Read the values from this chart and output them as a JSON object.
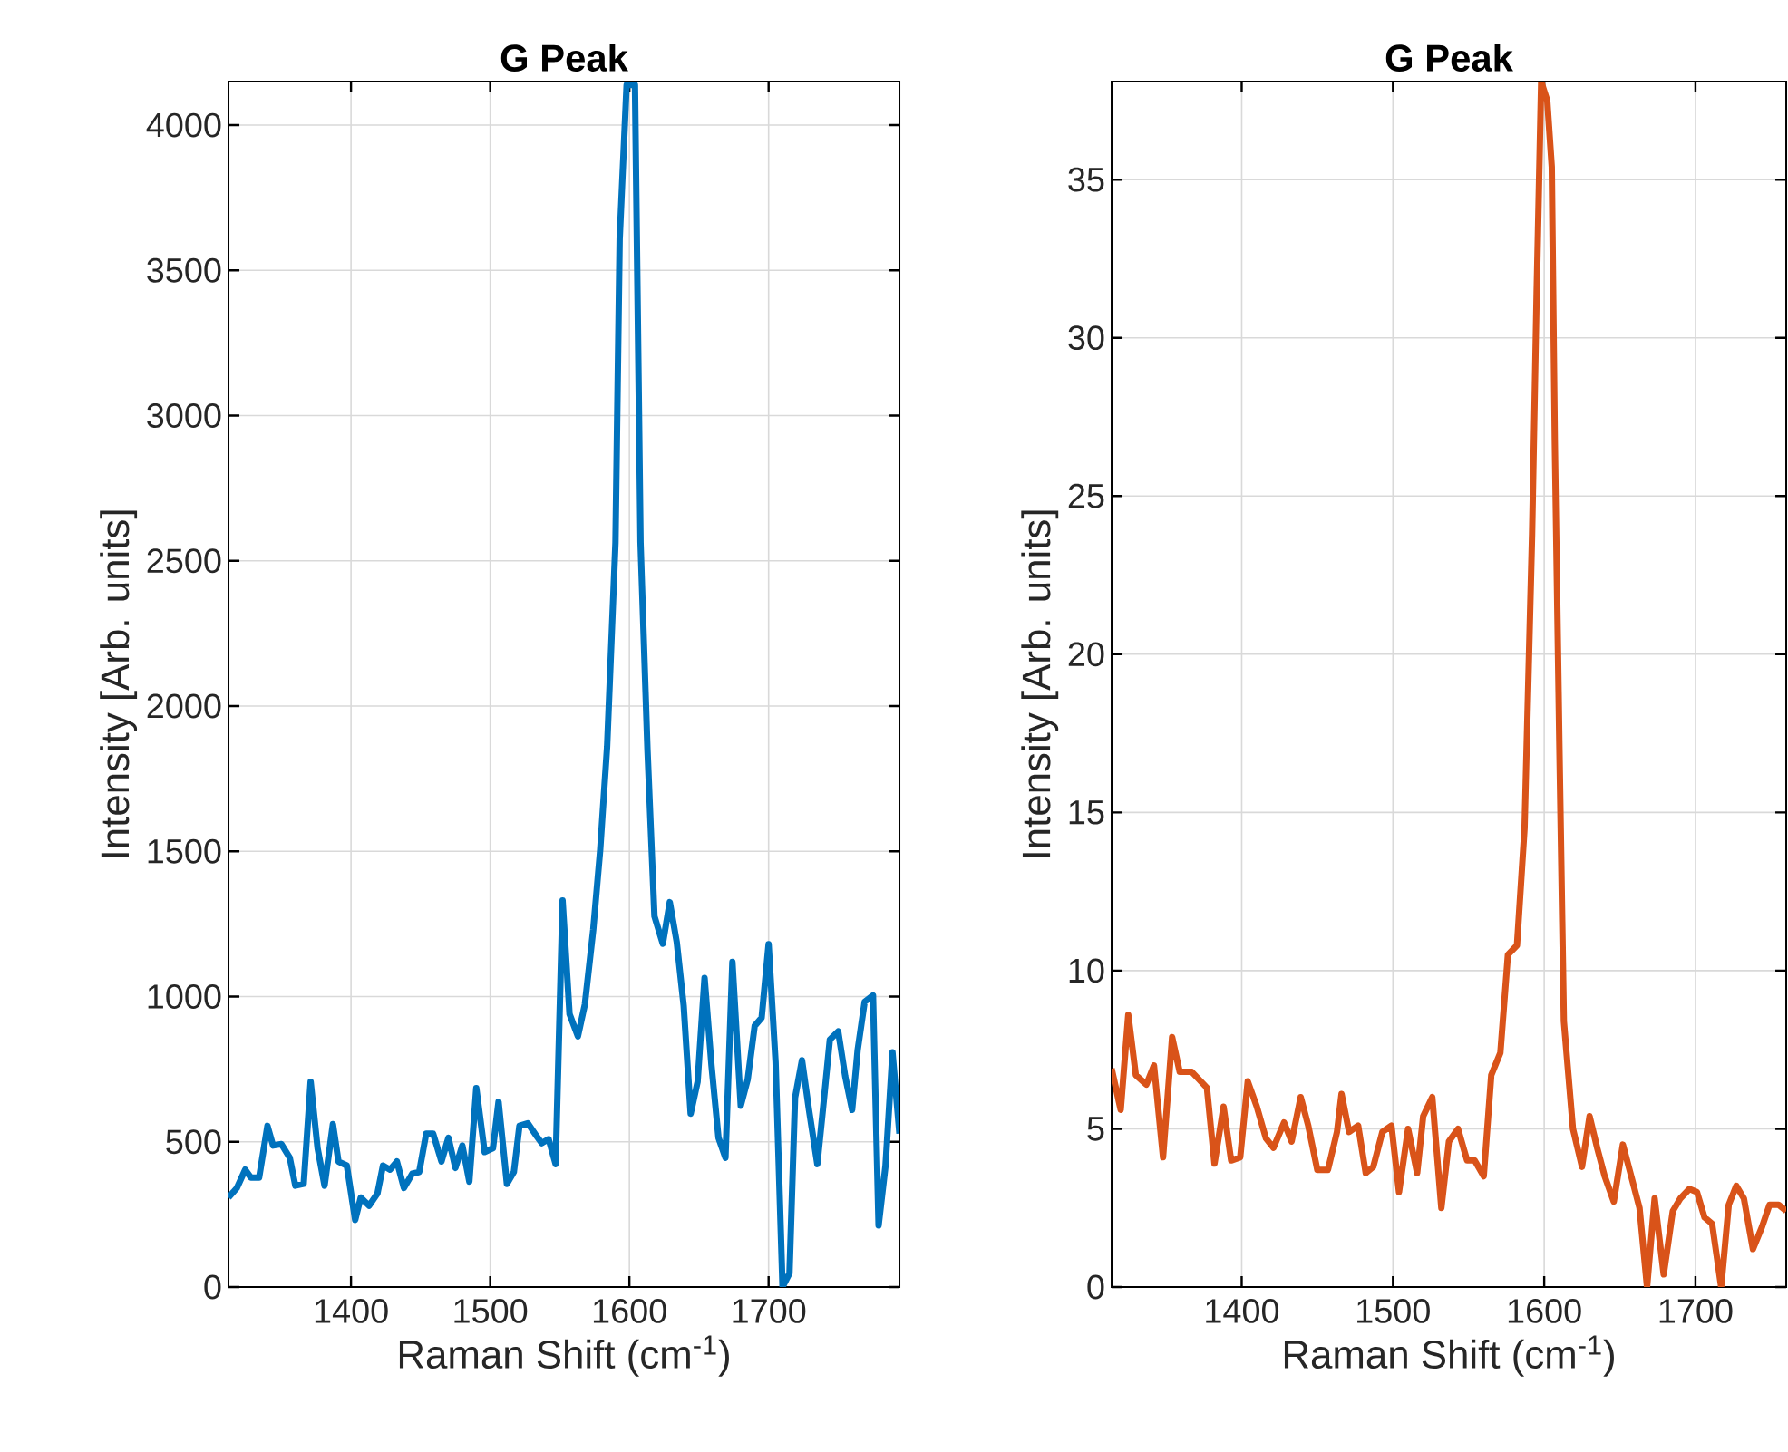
{
  "chart_data": [
    {
      "type": "line",
      "title": "G Peak",
      "xlabel": "Raman Shift (cm$^{-1}$)",
      "ylabel": "Intensity [Arb. units]",
      "color": "#0072bd",
      "grid": true,
      "xlim": [
        1312,
        1794
      ],
      "ylim": [
        0,
        4150
      ],
      "xticks": [
        1400,
        1500,
        1600,
        1700
      ],
      "yticks": [
        0,
        500,
        1000,
        1500,
        2000,
        2500,
        3000,
        3500,
        4000
      ],
      "x": [
        1312,
        1318,
        1324,
        1328,
        1334,
        1340,
        1344,
        1350,
        1356,
        1360,
        1366,
        1371,
        1376,
        1381,
        1387,
        1391,
        1397,
        1403,
        1407,
        1413,
        1419,
        1423,
        1428,
        1433,
        1438,
        1444,
        1449,
        1454,
        1459,
        1465,
        1470,
        1475,
        1480,
        1485,
        1490,
        1496,
        1502,
        1506,
        1512,
        1517,
        1521,
        1527,
        1533,
        1537,
        1542,
        1547,
        1552,
        1557,
        1563,
        1568,
        1574,
        1579,
        1584,
        1590,
        1593,
        1598,
        1604,
        1608,
        1613,
        1618,
        1624,
        1629,
        1634,
        1639,
        1644,
        1649,
        1654,
        1659,
        1664,
        1669,
        1674,
        1680,
        1685,
        1690,
        1695,
        1700,
        1705,
        1710,
        1715,
        1719,
        1724,
        1729,
        1735,
        1739,
        1744,
        1750,
        1755,
        1760,
        1764,
        1769,
        1775,
        1779,
        1784,
        1789,
        1794
      ],
      "values": [
        308,
        341,
        404,
        377,
        377,
        555,
        487,
        492,
        445,
        349,
        355,
        707,
        478,
        349,
        561,
        432,
        418,
        231,
        308,
        280,
        322,
        418,
        404,
        432,
        341,
        390,
        396,
        528,
        528,
        432,
        514,
        410,
        487,
        363,
        685,
        465,
        478,
        638,
        355,
        396,
        555,
        564,
        522,
        495,
        509,
        423,
        1331,
        940,
        863,
        973,
        1229,
        1504,
        1861,
        2563,
        3607,
        4138,
        4138,
        2563,
        1848,
        1276,
        1182,
        1325,
        1188,
        968,
        597,
        707,
        1064,
        762,
        514,
        445,
        1119,
        624,
        715,
        899,
        927,
        1180,
        775,
        0,
        47,
        652,
        781,
        610,
        423,
        610,
        852,
        880,
        726,
        610,
        817,
        982,
        1004,
        212,
        418,
        808,
        528
      ]
    },
    {
      "type": "line",
      "title": "G Peak",
      "xlabel": "Raman Shift (cm$^{-1}$)",
      "ylabel": "Intensity [Arb. units]",
      "color": "#d95319",
      "grid": true,
      "xlim": [
        1314,
        1760
      ],
      "ylim": [
        0,
        38.1
      ],
      "xticks": [
        1400,
        1500,
        1600,
        1700
      ],
      "yticks": [
        0,
        5,
        10,
        15,
        20,
        25,
        30,
        35
      ],
      "x": [
        1314,
        1320,
        1325,
        1330,
        1337,
        1342,
        1348,
        1354,
        1359,
        1367,
        1373,
        1377,
        1382,
        1388,
        1393,
        1399,
        1404,
        1410,
        1416,
        1421,
        1428,
        1433,
        1439,
        1444,
        1450,
        1457,
        1463,
        1466,
        1471,
        1477,
        1482,
        1487,
        1493,
        1499,
        1504,
        1510,
        1516,
        1520,
        1526,
        1532,
        1537,
        1543,
        1549,
        1554,
        1560,
        1565,
        1571,
        1576,
        1582,
        1587,
        1592,
        1595,
        1598,
        1602,
        1605,
        1607,
        1610,
        1613,
        1619,
        1625,
        1630,
        1635,
        1640,
        1646,
        1652,
        1657,
        1663,
        1668,
        1673,
        1679,
        1685,
        1690,
        1696,
        1701,
        1706,
        1711,
        1717,
        1722,
        1727,
        1732,
        1738,
        1744,
        1749,
        1755,
        1760
      ],
      "values": [
        6.9,
        5.6,
        8.6,
        6.7,
        6.4,
        7.0,
        4.1,
        7.9,
        6.8,
        6.8,
        6.5,
        6.3,
        3.9,
        5.7,
        4.0,
        4.1,
        6.5,
        5.7,
        4.7,
        4.4,
        5.2,
        4.6,
        6.0,
        5.1,
        3.7,
        3.7,
        4.9,
        6.1,
        4.9,
        5.1,
        3.6,
        3.8,
        4.9,
        5.1,
        3.0,
        5.0,
        3.6,
        5.4,
        6.0,
        2.5,
        4.6,
        5.0,
        4.0,
        4.0,
        3.5,
        6.7,
        7.4,
        10.5,
        10.8,
        14.5,
        23.8,
        31.4,
        38.1,
        37.5,
        35.4,
        26.8,
        17.2,
        8.4,
        5.0,
        3.8,
        5.4,
        4.4,
        3.5,
        2.7,
        4.5,
        3.6,
        2.5,
        0,
        2.8,
        0.4,
        2.4,
        2.8,
        3.1,
        3.0,
        2.2,
        2.0,
        0,
        2.6,
        3.2,
        2.8,
        1.2,
        1.9,
        2.6,
        2.6,
        2.4
      ]
    }
  ]
}
